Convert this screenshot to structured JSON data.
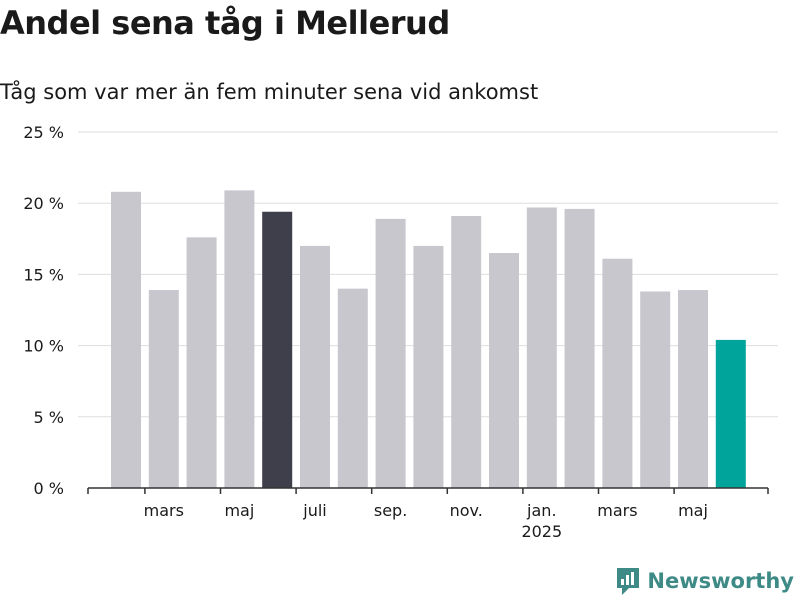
{
  "title": "Andel sena tåg i Mellerud",
  "subtitle": "Tåg som var mer än fem minuter sena vid ankomst",
  "brand": {
    "name": "Newsworthy",
    "logo_icon": "newsworthy-logo-icon",
    "color": "#3e8a86"
  },
  "colors": {
    "default_bar": "#c8c7ce",
    "highlight_bar": "#3f3e4b",
    "latest_bar": "#00a49a",
    "grid": "#dddddd",
    "axis": "#333333",
    "text": "#1a1a1a"
  },
  "chart_data": {
    "type": "bar",
    "y_tick_labels": [
      "0 %",
      "5 %",
      "10 %",
      "15 %",
      "20 %",
      "25 %"
    ],
    "ylim": [
      0,
      25
    ],
    "grid": true,
    "x_tick_labels": [
      "mars",
      "maj",
      "juli",
      "sep.",
      "nov.",
      "jan.",
      "mars",
      "maj"
    ],
    "x_year_label": "2025",
    "values": [
      20.8,
      13.9,
      17.6,
      20.9,
      19.4,
      17.0,
      14.0,
      18.9,
      17.0,
      19.1,
      16.5,
      19.7,
      19.6,
      16.1,
      13.8,
      13.9,
      10.4
    ],
    "highlighted_index": 4,
    "latest_index": 16
  }
}
